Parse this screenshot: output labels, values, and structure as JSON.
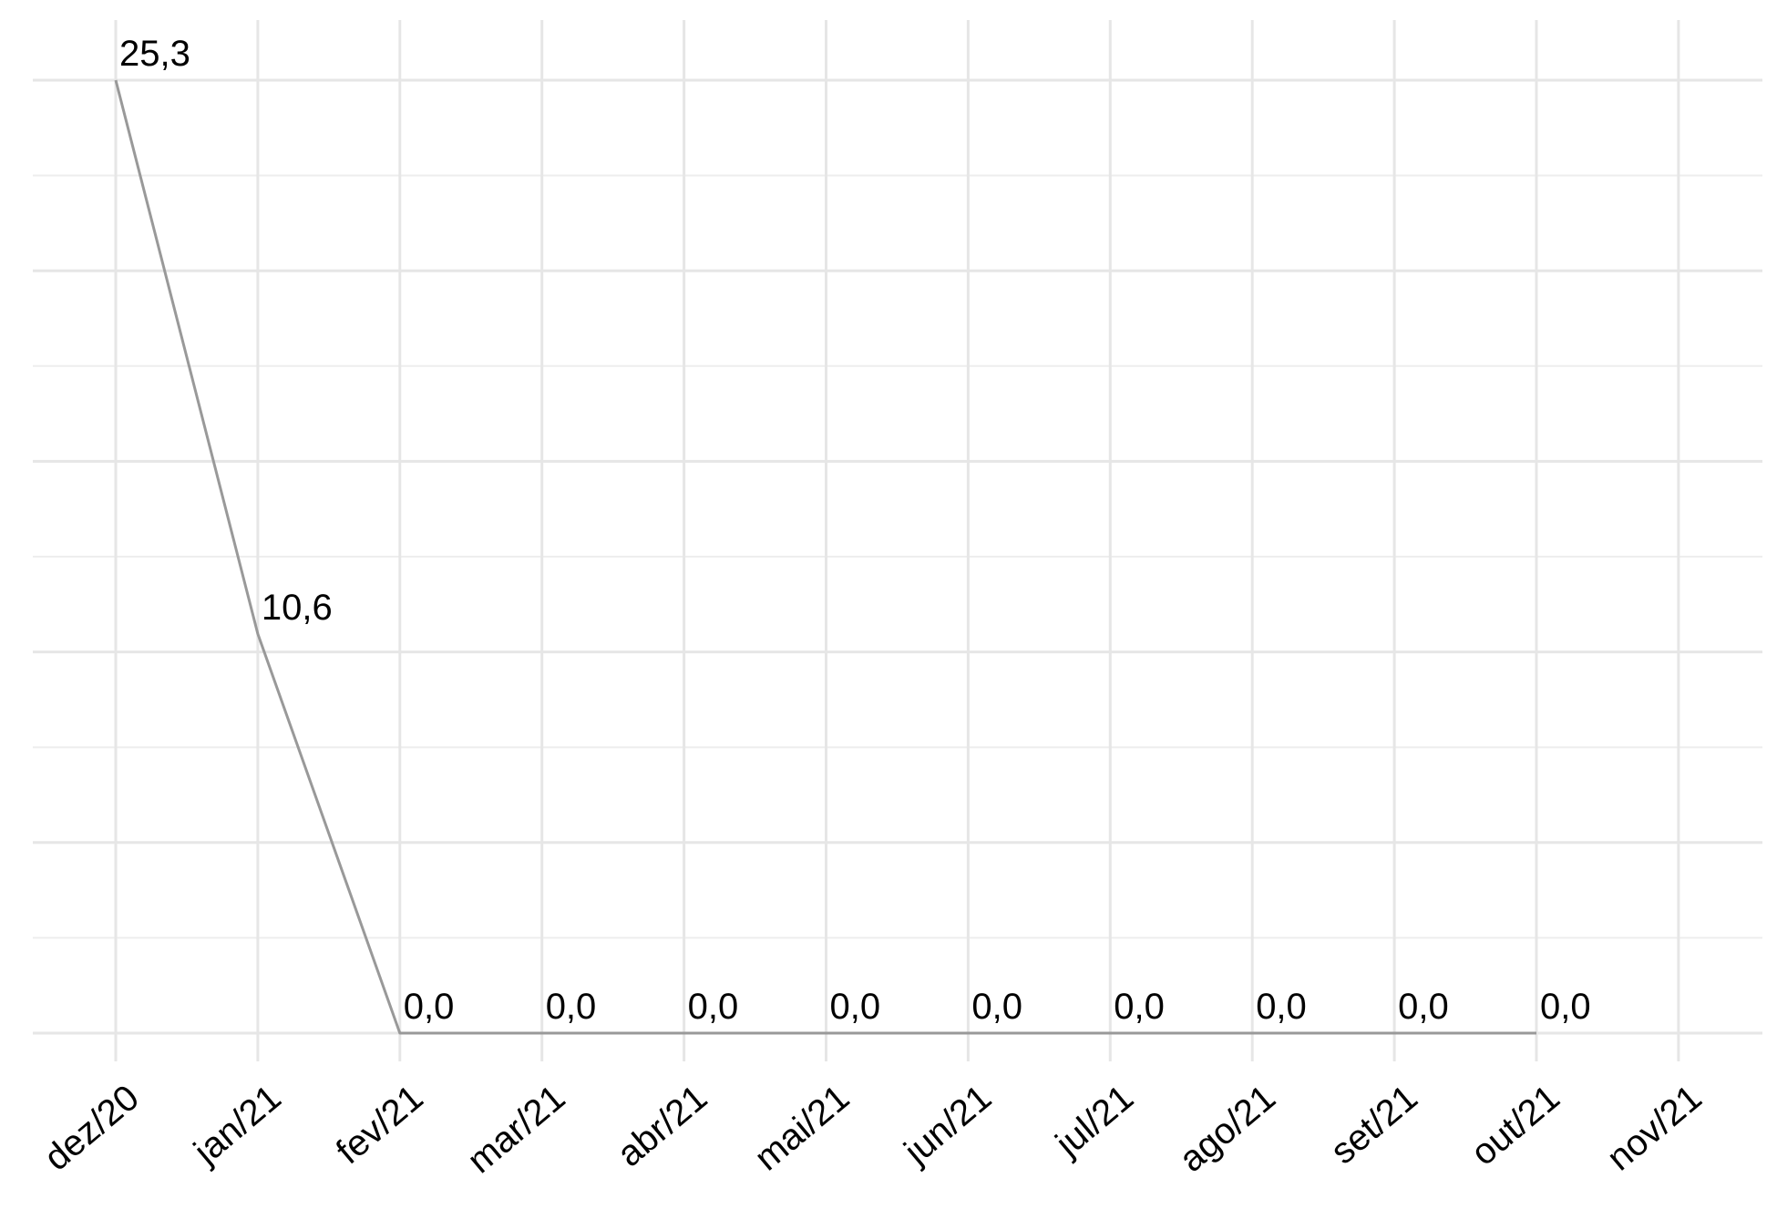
{
  "chart_data": {
    "type": "line",
    "title": "",
    "xlabel": "",
    "ylabel": "",
    "categories": [
      "dez/20",
      "jan/21",
      "fev/21",
      "mar/21",
      "abr/21",
      "mai/21",
      "jun/21",
      "jul/21",
      "ago/21",
      "set/21",
      "out/21",
      "nov/21"
    ],
    "values": [
      25.3,
      10.6,
      0.0,
      0.0,
      0.0,
      0.0,
      0.0,
      0.0,
      0.0,
      0.0,
      0.0,
      null
    ],
    "data_labels": [
      "25,3",
      "10,6",
      "0,0",
      "0,0",
      "0,0",
      "0,0",
      "0,0",
      "0,0",
      "0,0",
      "0,0",
      "0,0",
      null
    ],
    "ylim": [
      0,
      25.3
    ],
    "grid": true,
    "legend": "none",
    "colors": {
      "line": "#999999",
      "grid": "#e6e6e6"
    }
  }
}
